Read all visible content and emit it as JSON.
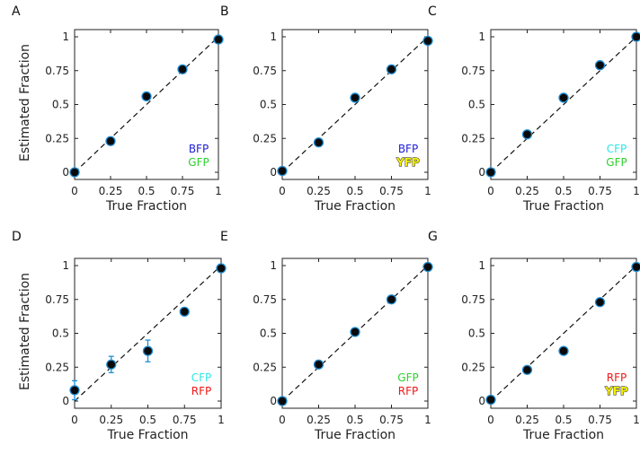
{
  "chart_data": [
    {
      "type": "scatter",
      "panel": "A",
      "xlabel": "True Fraction",
      "ylabel": "Estimated Fraction",
      "xlim": [
        0,
        1
      ],
      "ylim": [
        0,
        1
      ],
      "xticks": [
        "0",
        "0.25",
        "0.5",
        "0.75",
        "1"
      ],
      "yticks": [
        "0",
        "0.25",
        "0.5",
        "0.75",
        "1"
      ],
      "x": [
        0,
        0.25,
        0.5,
        0.75,
        1
      ],
      "y": [
        0.0,
        0.23,
        0.56,
        0.76,
        0.98
      ],
      "err": [
        0,
        0,
        0,
        0,
        0
      ],
      "legend": [
        {
          "name": "BFP",
          "color": "#1f1fd6"
        },
        {
          "name": "GFP",
          "color": "#2fd12f"
        }
      ]
    },
    {
      "type": "scatter",
      "panel": "B",
      "xlabel": "True Fraction",
      "ylabel": "",
      "xlim": [
        0,
        1
      ],
      "ylim": [
        0,
        1
      ],
      "xticks": [
        "0",
        "0.25",
        "0.5",
        "0.75",
        "1"
      ],
      "yticks": [
        "0",
        "0.25",
        "0.5",
        "0.75",
        "1"
      ],
      "x": [
        0,
        0.25,
        0.5,
        0.75,
        1
      ],
      "y": [
        0.01,
        0.22,
        0.55,
        0.76,
        0.97
      ],
      "err": [
        0,
        0,
        0,
        0,
        0
      ],
      "legend": [
        {
          "name": "BFP",
          "color": "#1f1fd6"
        },
        {
          "name": "YFP",
          "color": "#f4f000",
          "outline": true
        }
      ]
    },
    {
      "type": "scatter",
      "panel": "C",
      "xlabel": "True Fraction",
      "ylabel": "",
      "xlim": [
        0,
        1
      ],
      "ylim": [
        0,
        1
      ],
      "xticks": [
        "0",
        "0.25",
        "0.5",
        "0.75",
        "1"
      ],
      "yticks": [
        "0",
        "0.25",
        "0.5",
        "0.75",
        "1"
      ],
      "x": [
        0,
        0.25,
        0.5,
        0.75,
        1
      ],
      "y": [
        0.0,
        0.28,
        0.55,
        0.79,
        1.0
      ],
      "err": [
        0,
        0,
        0,
        0,
        0
      ],
      "legend": [
        {
          "name": "CFP",
          "color": "#2ee6e6"
        },
        {
          "name": "GFP",
          "color": "#2fd12f"
        }
      ]
    },
    {
      "type": "scatter",
      "panel": "D",
      "xlabel": "True Fraction",
      "ylabel": "Estimated Fraction",
      "xlim": [
        0,
        1
      ],
      "ylim": [
        0,
        1
      ],
      "xticks": [
        "0",
        "0.25",
        "0.5",
        "0.75",
        "1"
      ],
      "yticks": [
        "0",
        "0.25",
        "0.5",
        "0.75",
        "1"
      ],
      "x": [
        0,
        0.25,
        0.5,
        0.75,
        1
      ],
      "y": [
        0.08,
        0.27,
        0.37,
        0.66,
        0.98
      ],
      "err": [
        0.07,
        0.06,
        0.08,
        0,
        0
      ],
      "legend": [
        {
          "name": "CFP",
          "color": "#2ee6e6"
        },
        {
          "name": "RFP",
          "color": "#f01818"
        }
      ]
    },
    {
      "type": "scatter",
      "panel": "E",
      "xlabel": "True Fraction",
      "ylabel": "",
      "xlim": [
        0,
        1
      ],
      "ylim": [
        0,
        1
      ],
      "xticks": [
        "0",
        "0.25",
        "0.5",
        "0.75",
        "1"
      ],
      "yticks": [
        "0",
        "0.25",
        "0.5",
        "0.75",
        "1"
      ],
      "x": [
        0,
        0.25,
        0.5,
        0.75,
        1
      ],
      "y": [
        0.0,
        0.27,
        0.51,
        0.75,
        0.99
      ],
      "err": [
        0,
        0,
        0,
        0,
        0
      ],
      "legend": [
        {
          "name": "GFP",
          "color": "#2fd12f"
        },
        {
          "name": "RFP",
          "color": "#f01818"
        }
      ]
    },
    {
      "type": "scatter",
      "panel": "G",
      "xlabel": "True Fraction",
      "ylabel": "",
      "xlim": [
        0,
        1
      ],
      "ylim": [
        0,
        1
      ],
      "xticks": [
        "0",
        "0.25",
        "0.5",
        "0.75",
        "1"
      ],
      "yticks": [
        "0",
        "0.25",
        "0.5",
        "0.75",
        "1"
      ],
      "x": [
        0,
        0.25,
        0.5,
        0.75,
        1
      ],
      "y": [
        0.01,
        0.23,
        0.37,
        0.73,
        0.99
      ],
      "err": [
        0,
        0,
        0,
        0,
        0
      ],
      "legend": [
        {
          "name": "RFP",
          "color": "#f01818"
        },
        {
          "name": "YFP",
          "color": "#f4f000",
          "outline": true
        }
      ]
    }
  ],
  "marker": {
    "fill": "#0a0a0a",
    "edge": "#1f8fd6",
    "errorbar": "#1f8fd6"
  },
  "reference_line": {
    "color": "#111111",
    "style": "dashed"
  }
}
